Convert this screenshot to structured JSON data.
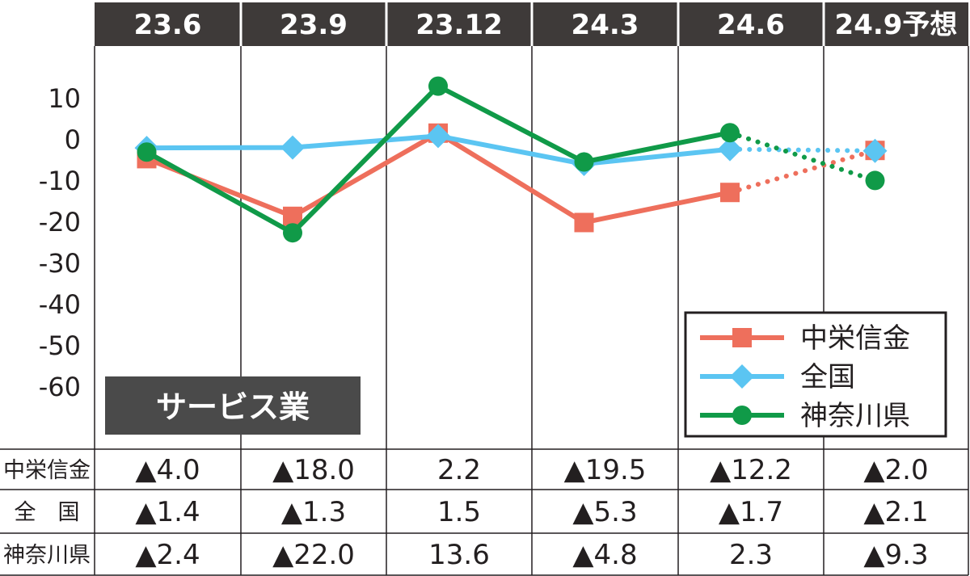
{
  "chart_data": {
    "type": "line",
    "categories": [
      "23.6",
      "23.9",
      "23.12",
      "24.3",
      "24.6",
      "24.9予想"
    ],
    "y_ticks": [
      10,
      0,
      -10,
      -20,
      -30,
      -40,
      -50,
      -60
    ],
    "ylim": [
      -60,
      10
    ],
    "badge": "サービス業",
    "series": [
      {
        "name": "中栄信金",
        "marker": "square",
        "color": "#ee6f5c",
        "values": [
          -4.0,
          -18.0,
          2.2,
          -19.5,
          -12.2,
          -2.0
        ],
        "labels": [
          "▲4.0",
          "▲18.0",
          "2.2",
          "▲19.5",
          "▲12.2",
          "▲2.0"
        ]
      },
      {
        "name": "全国",
        "marker": "diamond",
        "color": "#5bc5f2",
        "values": [
          -1.4,
          -1.3,
          1.5,
          -5.3,
          -1.7,
          -2.1
        ],
        "labels": [
          "▲1.4",
          "▲1.3",
          "1.5",
          "▲5.3",
          "▲1.7",
          "▲2.1"
        ]
      },
      {
        "name": "神奈川県",
        "marker": "circle",
        "color": "#109a48",
        "values": [
          -2.4,
          -22.0,
          13.6,
          -4.8,
          2.3,
          -9.3
        ],
        "labels": [
          "▲2.4",
          "▲22.0",
          "13.6",
          "▲4.8",
          "2.3",
          "▲9.3"
        ]
      }
    ],
    "forecast_segment": "dotted",
    "table_row_labels": [
      "中栄信金",
      "全　国",
      "神奈川県"
    ],
    "legend_position": "bottom-right"
  },
  "colors": {
    "header_bg": "#3e3a39",
    "badge_bg": "#4a4a4a",
    "grid": "#231f20"
  }
}
